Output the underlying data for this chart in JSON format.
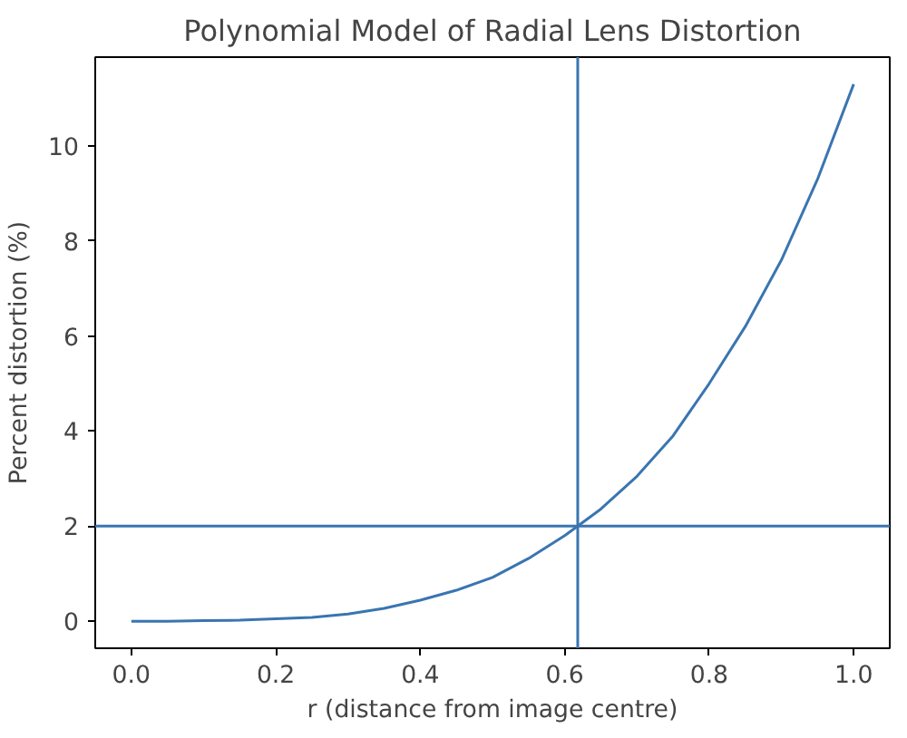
{
  "chart_data": {
    "type": "line",
    "title": "Polynomial Model of Radial Lens Distortion",
    "xlabel": "r (distance from image centre)",
    "ylabel": "Percent distortion (%)",
    "x": [
      0,
      0.05,
      0.1,
      0.15,
      0.2,
      0.25,
      0.3,
      0.35,
      0.4,
      0.45,
      0.5,
      0.55,
      0.6,
      0.618,
      0.65,
      0.7,
      0.75,
      0.8,
      0.85,
      0.9,
      0.95,
      1.0
    ],
    "series": [
      {
        "color": "#3a75b0",
        "values": [
          0,
          0,
          0.01,
          0.02,
          0.05,
          0.08,
          0.15,
          0.27,
          0.44,
          0.65,
          0.92,
          1.32,
          1.8,
          2.0,
          2.36,
          3.05,
          3.9,
          5.0,
          6.2,
          7.6,
          9.3,
          11.3
        ]
      }
    ],
    "xlim": [
      -0.05,
      1.05
    ],
    "ylim": [
      -0.57,
      11.87
    ],
    "xticks": [
      {
        "value": 0,
        "label": "0.0"
      },
      0.2,
      0.4,
      0.6,
      0.8,
      {
        "value": 1,
        "label": "1.0"
      }
    ],
    "yticks": [
      0,
      2,
      4,
      6,
      8,
      10
    ],
    "ref_lines": [
      {
        "axis": "x",
        "value": 0.618,
        "color": "#3a75b0"
      },
      {
        "axis": "y",
        "value": 2,
        "color": "#3a75b0"
      }
    ],
    "grid": false,
    "marker": "none",
    "line_style": "solid"
  }
}
